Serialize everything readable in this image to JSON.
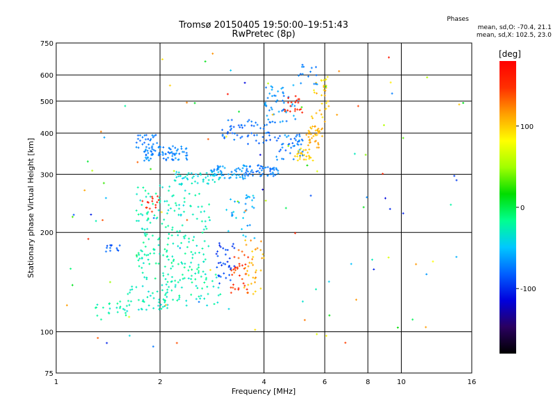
{
  "chart_data": {
    "type": "scatter",
    "title": "Tromsø 20150405 19:50:00–19:51:43",
    "subtitle": "RwPretec (8p)",
    "xlabel": "Frequency [MHz]",
    "ylabel": "Stationary phase Virtual Height [km]",
    "x_scale": "log2",
    "y_scale": "log",
    "xlim": [
      1,
      16
    ],
    "ylim": [
      75,
      750
    ],
    "grid": true,
    "x_ticks": [
      1,
      2,
      4,
      6,
      8,
      10,
      16
    ],
    "x_tick_labels": [
      "1",
      "2",
      "4",
      "6",
      "8",
      "10",
      "16"
    ],
    "y_ticks": [
      75,
      100,
      200,
      300,
      400,
      500,
      600,
      750
    ],
    "y_tick_labels": [
      "75",
      "100",
      "200",
      "300",
      "400",
      "500",
      "600",
      "750"
    ],
    "phase_info": {
      "title": "Phases",
      "line1": "mean, sd,O: -70.4, 21.1",
      "line2": "mean, sd,X: 102.5, 23.0"
    },
    "colorbar": {
      "label": "[deg]",
      "range": [
        -180,
        180
      ],
      "ticks": [
        100,
        0,
        -100
      ],
      "tick_labels": [
        "100",
        "0",
        "-100"
      ],
      "colors": [
        "#000000",
        "#2a0060",
        "#0000dd",
        "#0060ff",
        "#00c8ff",
        "#00ff90",
        "#00dd00",
        "#a0ff00",
        "#ffff00",
        "#ffa000",
        "#ff3000",
        "#ff0000"
      ]
    },
    "series": [
      {
        "x_range": [
          1.8,
          2.4
        ],
        "y_range": [
          330,
          365
        ],
        "n": 80,
        "phase": [
          -80,
          -60
        ]
      },
      {
        "x_range": [
          1.7,
          2.0
        ],
        "y_range": [
          360,
          395
        ],
        "n": 25,
        "phase": [
          -85,
          -65
        ]
      },
      {
        "x_range": [
          2.2,
          3.0
        ],
        "y_range": [
          280,
          305
        ],
        "n": 50,
        "phase": [
          -50,
          -25
        ]
      },
      {
        "x_range": [
          2.8,
          3.6
        ],
        "y_range": [
          290,
          320
        ],
        "n": 50,
        "phase": [
          -75,
          -55
        ]
      },
      {
        "x_range": [
          3.5,
          4.5
        ],
        "y_range": [
          295,
          320
        ],
        "n": 50,
        "phase": [
          -85,
          -65
        ]
      },
      {
        "x_range": [
          3.0,
          4.2
        ],
        "y_range": [
          370,
          440
        ],
        "n": 55,
        "phase": [
          -90,
          -70
        ]
      },
      {
        "x_range": [
          4.0,
          5.0
        ],
        "y_range": [
          430,
          560
        ],
        "n": 50,
        "phase": [
          -80,
          -55
        ]
      },
      {
        "x_range": [
          4.3,
          5.2
        ],
        "y_range": [
          330,
          400
        ],
        "n": 45,
        "phase": [
          -85,
          -60
        ]
      },
      {
        "x_range": [
          4.6,
          5.2
        ],
        "y_range": [
          460,
          520
        ],
        "n": 20,
        "phase": [
          140,
          170
        ]
      },
      {
        "x_range": [
          5.3,
          5.9
        ],
        "y_range": [
          360,
          420
        ],
        "n": 40,
        "phase": [
          95,
          120
        ]
      },
      {
        "x_range": [
          5.5,
          6.2
        ],
        "y_range": [
          430,
          600
        ],
        "n": 30,
        "phase": [
          85,
          115
        ]
      },
      {
        "x_range": [
          4.9,
          5.6
        ],
        "y_range": [
          330,
          360
        ],
        "n": 25,
        "phase": [
          90,
          110
        ]
      },
      {
        "x_range": [
          5.0,
          5.8
        ],
        "y_range": [
          560,
          650
        ],
        "n": 15,
        "phase": [
          -80,
          -60
        ]
      },
      {
        "x_range": [
          1.6,
          2.1
        ],
        "y_range": [
          115,
          140
        ],
        "n": 45,
        "phase": [
          -40,
          -20
        ]
      },
      {
        "x_range": [
          1.3,
          1.6
        ],
        "y_range": [
          108,
          122
        ],
        "n": 20,
        "phase": [
          -35,
          -15
        ]
      },
      {
        "x_range": [
          2.0,
          3.0
        ],
        "y_range": [
          120,
          150
        ],
        "n": 55,
        "phase": [
          -40,
          -15
        ]
      },
      {
        "x_range": [
          1.7,
          2.6
        ],
        "y_range": [
          140,
          200
        ],
        "n": 90,
        "phase": [
          -35,
          -10
        ]
      },
      {
        "x_range": [
          1.7,
          2.4
        ],
        "y_range": [
          200,
          280
        ],
        "n": 70,
        "phase": [
          -40,
          -15
        ]
      },
      {
        "x_range": [
          2.4,
          2.8
        ],
        "y_range": [
          150,
          270
        ],
        "n": 40,
        "phase": [
          -35,
          -15
        ]
      },
      {
        "x_range": [
          1.7,
          2.0
        ],
        "y_range": [
          230,
          260
        ],
        "n": 15,
        "phase": [
          145,
          170
        ]
      },
      {
        "x_range": [
          1.38,
          1.55
        ],
        "y_range": [
          175,
          185
        ],
        "n": 12,
        "phase": [
          -90,
          -75
        ]
      },
      {
        "x_range": [
          2.9,
          3.3
        ],
        "y_range": [
          140,
          190
        ],
        "n": 35,
        "phase": [
          -105,
          -80
        ]
      },
      {
        "x_range": [
          3.2,
          3.6
        ],
        "y_range": [
          130,
          180
        ],
        "n": 35,
        "phase": [
          130,
          165
        ]
      },
      {
        "x_range": [
          3.5,
          4.0
        ],
        "y_range": [
          130,
          190
        ],
        "n": 35,
        "phase": [
          95,
          125
        ]
      },
      {
        "x_range": [
          3.0,
          3.8
        ],
        "y_range": [
          190,
          260
        ],
        "n": 30,
        "phase": [
          -70,
          -40
        ]
      },
      {
        "x_range": [
          1.0,
          16.0
        ],
        "y_range": [
          90,
          700
        ],
        "n": 110,
        "phase": [
          -120,
          170
        ]
      }
    ]
  }
}
